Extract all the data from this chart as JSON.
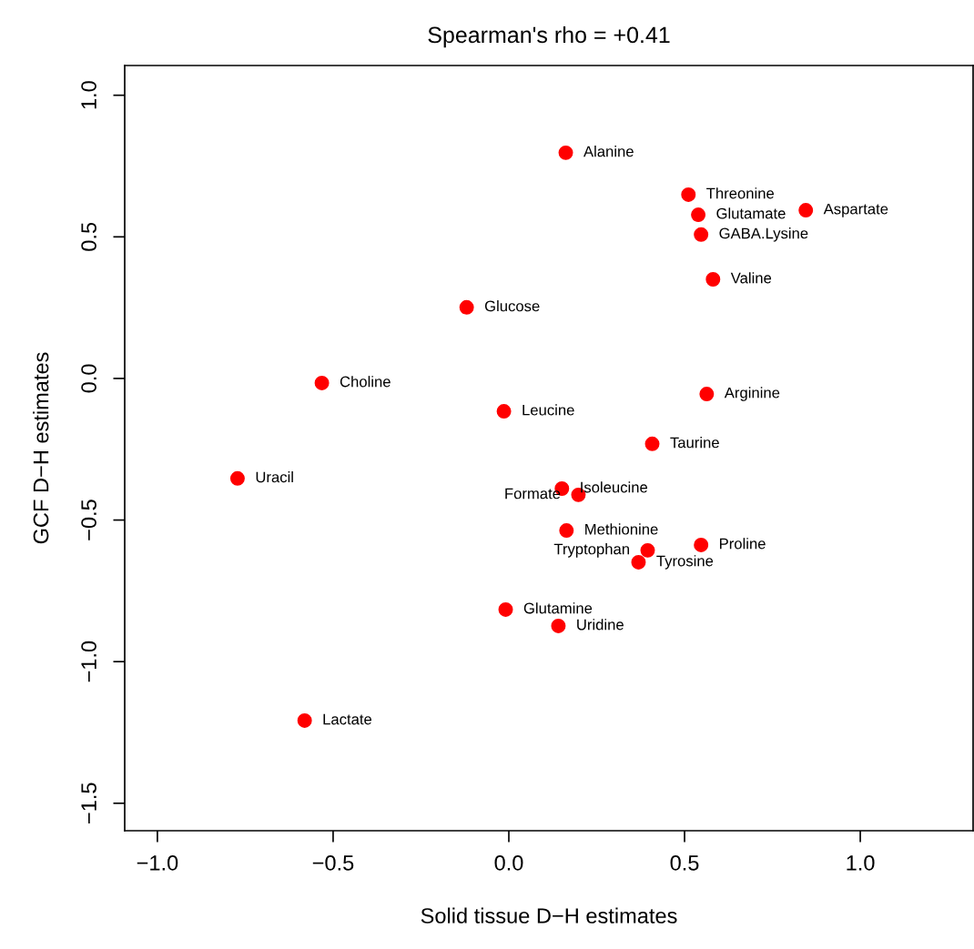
{
  "chart_data": {
    "type": "scatter",
    "title": "Spearman's rho = +0.41",
    "xlabel": "Solid tissue D−H estimates",
    "ylabel": "GCF D−H estimates",
    "x": [
      0.162,
      0.511,
      0.539,
      0.845,
      0.547,
      0.581,
      -0.12,
      -0.532,
      -0.014,
      0.563,
      0.408,
      -0.772,
      0.151,
      0.198,
      0.164,
      0.547,
      0.395,
      0.369,
      -0.009,
      0.141,
      -0.581
    ],
    "series": [
      {
        "color": "#ff0000",
        "values": [
          0.797,
          0.649,
          0.578,
          0.594,
          0.508,
          0.35,
          0.251,
          -0.016,
          -0.116,
          -0.055,
          -0.231,
          -0.353,
          -0.389,
          -0.411,
          -0.537,
          -0.588,
          -0.607,
          -0.649,
          -0.816,
          -0.874,
          -1.208
        ]
      }
    ],
    "annotations": [
      {
        "text": "Alanine",
        "x": 0.162,
        "y": 0.797
      },
      {
        "text": "Threonine",
        "x": 0.511,
        "y": 0.649
      },
      {
        "text": "Glutamate",
        "x": 0.539,
        "y": 0.578
      },
      {
        "text": "Aspartate",
        "x": 0.845,
        "y": 0.594
      },
      {
        "text": "GABA.Lysine",
        "x": 0.547,
        "y": 0.508
      },
      {
        "text": "Valine",
        "x": 0.581,
        "y": 0.35
      },
      {
        "text": "Glucose",
        "x": -0.12,
        "y": 0.251
      },
      {
        "text": "Choline",
        "x": -0.532,
        "y": -0.016
      },
      {
        "text": "Leucine",
        "x": -0.014,
        "y": -0.116
      },
      {
        "text": "Arginine",
        "x": 0.563,
        "y": -0.055
      },
      {
        "text": "Taurine",
        "x": 0.408,
        "y": -0.231
      },
      {
        "text": "Uracil",
        "x": -0.772,
        "y": -0.353
      },
      {
        "text": "Isoleucine",
        "x": 0.151,
        "y": -0.389
      },
      {
        "text": "Formate",
        "x": 0.198,
        "y": -0.411
      },
      {
        "text": "Methionine",
        "x": 0.164,
        "y": -0.537
      },
      {
        "text": "Proline",
        "x": 0.547,
        "y": -0.588
      },
      {
        "text": "Tryptophan",
        "x": 0.395,
        "y": -0.607
      },
      {
        "text": "Tyrosine",
        "x": 0.369,
        "y": -0.649
      },
      {
        "text": "Glutamine",
        "x": -0.009,
        "y": -0.816
      },
      {
        "text": "Uridine",
        "x": 0.141,
        "y": -0.874
      },
      {
        "text": "Lactate",
        "x": -0.581,
        "y": -1.208
      }
    ],
    "xlim": [
      -1.093,
      1.321
    ],
    "ylim": [
      -1.597,
      1.105
    ],
    "xticks": [
      {
        "value": -1.0,
        "label": "−1.0"
      },
      {
        "value": -0.5,
        "label": "−0.5"
      },
      {
        "value": 0.0,
        "label": "0.0"
      },
      {
        "value": 0.5,
        "label": "0.5"
      },
      {
        "value": 1.0,
        "label": "1.0"
      }
    ],
    "yticks": [
      {
        "value": -1.5,
        "label": "−1.5"
      },
      {
        "value": -1.0,
        "label": "−1.0"
      },
      {
        "value": -0.5,
        "label": "−0.5"
      },
      {
        "value": 0.0,
        "label": "0.0"
      },
      {
        "value": 0.5,
        "label": "0.5"
      },
      {
        "value": 1.0,
        "label": "1.0"
      }
    ],
    "marker": "circle",
    "grid": false,
    "legend": false
  }
}
